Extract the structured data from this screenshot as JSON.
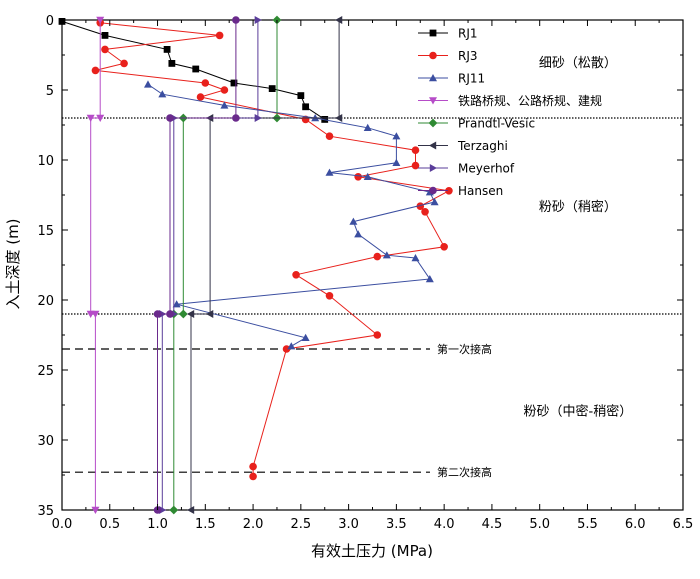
{
  "chart_data": {
    "type": "line",
    "xlabel": "有效土压力 (MPa)",
    "ylabel": "入土深度 (m)",
    "xlim": [
      0.0,
      6.5
    ],
    "ylim": [
      0,
      35
    ],
    "y_inverted": true,
    "x_axis_position": "top-and-bottom",
    "xticks": [
      "0.0",
      "0.5",
      "1.0",
      "1.5",
      "2.0",
      "2.5",
      "3.0",
      "3.5",
      "4.0",
      "4.5",
      "5.0",
      "5.5",
      "6.0",
      "6.5"
    ],
    "yticks": [
      "0",
      "5",
      "10",
      "15",
      "20",
      "25",
      "30",
      "35"
    ],
    "legend_position": "top-right",
    "series": [
      {
        "name": "RJ1",
        "color": "#000000",
        "marker": "square",
        "x": [
          0.0,
          0.45,
          1.1,
          1.15,
          1.4,
          1.8,
          2.2,
          2.5,
          2.55,
          2.75
        ],
        "y": [
          0.1,
          1.1,
          2.1,
          3.1,
          3.5,
          4.5,
          4.9,
          5.4,
          6.2,
          7.1
        ]
      },
      {
        "name": "RJ3",
        "color": "#e8211c",
        "marker": "circle",
        "x": [
          0.4,
          1.65,
          0.45,
          0.65,
          0.35,
          1.5,
          1.7,
          1.45,
          2.55,
          2.8,
          3.7,
          3.7,
          3.1,
          4.05,
          3.75,
          3.8,
          4.0,
          3.3,
          2.45,
          2.8,
          3.3,
          2.35,
          2.0,
          2.0
        ],
        "y": [
          0.2,
          1.1,
          2.1,
          3.1,
          3.6,
          4.5,
          5.0,
          5.5,
          7.1,
          8.3,
          9.3,
          10.4,
          11.2,
          12.2,
          13.3,
          13.7,
          16.2,
          16.9,
          18.2,
          19.7,
          22.5,
          23.5,
          31.9,
          32.6
        ]
      },
      {
        "name": "RJ11",
        "color": "#3b4ea0",
        "marker": "triangle-up",
        "x": [
          0.9,
          1.05,
          1.7,
          2.65,
          3.2,
          3.5,
          3.5,
          2.8,
          3.2,
          3.85,
          3.9,
          3.05,
          3.1,
          3.4,
          3.7,
          3.85,
          1.2,
          2.55,
          2.4
        ],
        "y": [
          4.6,
          5.3,
          6.1,
          7.0,
          7.7,
          8.3,
          10.2,
          10.9,
          11.2,
          12.3,
          13.0,
          14.4,
          15.3,
          16.8,
          17.0,
          18.5,
          20.3,
          22.7,
          23.3
        ]
      },
      {
        "name": "铁路桥规、公路桥规、建规",
        "color": "#b64cc8",
        "marker": "triangle-down",
        "x": [
          0.4,
          0.4,
          0.3,
          0.3,
          0.35,
          0.35
        ],
        "y": [
          0,
          7.0,
          7.0,
          21.0,
          21.0,
          35
        ]
      },
      {
        "name": "Prandtl-Vesic",
        "color": "#2f8a33",
        "marker": "diamond",
        "x": [
          2.25,
          2.25,
          1.27,
          1.27,
          1.17,
          1.17
        ],
        "y": [
          0,
          7.0,
          7.0,
          21.0,
          21.0,
          35
        ]
      },
      {
        "name": "Terzaghi",
        "color": "#333348",
        "marker": "triangle-left",
        "x": [
          2.9,
          2.9,
          1.55,
          1.55,
          1.35,
          1.35
        ],
        "y": [
          0,
          7.0,
          7.0,
          21.0,
          21.0,
          35
        ]
      },
      {
        "name": "Meyerhof",
        "color": "#5a3d9a",
        "marker": "triangle-right",
        "x": [
          2.05,
          2.05,
          1.17,
          1.17,
          1.05,
          1.05
        ],
        "y": [
          0,
          7.0,
          7.0,
          21.0,
          21.0,
          35
        ]
      },
      {
        "name": "Hansen",
        "color": "#6a2a8c",
        "marker": "circle",
        "x": [
          1.82,
          1.82,
          1.13,
          1.13,
          1.0,
          1.0
        ],
        "y": [
          0,
          7.0,
          7.0,
          21.0,
          21.0,
          35
        ]
      }
    ],
    "boundaries": [
      {
        "y": 7.0,
        "style": "dotted"
      },
      {
        "y": 21.0,
        "style": "dotted"
      },
      {
        "y": 23.5,
        "style": "dashed",
        "label": "第一次接高"
      },
      {
        "y": 32.3,
        "style": "dashed",
        "label": "第二次接高"
      }
    ],
    "annotations": [
      {
        "text": "细砂（松散）",
        "x": 5.4,
        "y": 3.0
      },
      {
        "text": "粉砂（稍密）",
        "x": 5.4,
        "y": 13.3
      },
      {
        "text": "粉砂（中密-稍密）",
        "x": 5.4,
        "y": 27.9
      }
    ]
  }
}
